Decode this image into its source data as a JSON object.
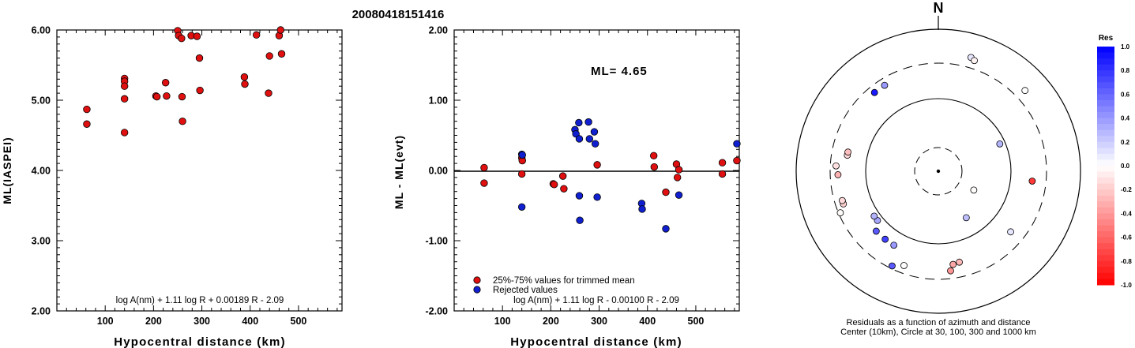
{
  "title": "20080418151416",
  "chart_data": [
    {
      "type": "scatter",
      "xlabel": "Hypocentral distance (km)",
      "ylabel": "ML(IASPEI)",
      "xlim": [
        0,
        590
      ],
      "ylim": [
        2.0,
        6.0
      ],
      "xticks": [
        "100",
        "200",
        "300",
        "400",
        "500"
      ],
      "yticks": [
        "2.00",
        "3.00",
        "4.00",
        "5.00",
        "6.00"
      ],
      "formula": "log A(nm) + 1.11 log R + 0.00189 R - 2.09",
      "series": [
        {
          "color": "#e01010",
          "points": [
            [
              62,
              4.87
            ],
            [
              62,
              4.66
            ],
            [
              140,
              5.31
            ],
            [
              140,
              5.27
            ],
            [
              140,
              5.2
            ],
            [
              140,
              5.02
            ],
            [
              140,
              4.54
            ],
            [
              205,
              5.06
            ],
            [
              207,
              5.05
            ],
            [
              225,
              5.25
            ],
            [
              227,
              5.06
            ],
            [
              250,
              5.99
            ],
            [
              252,
              5.92
            ],
            [
              258,
              5.88
            ],
            [
              259,
              5.05
            ],
            [
              260,
              4.7
            ],
            [
              278,
              5.92
            ],
            [
              290,
              5.91
            ],
            [
              295,
              5.6
            ],
            [
              296,
              5.14
            ],
            [
              388,
              5.33
            ],
            [
              389,
              5.23
            ],
            [
              413,
              5.93
            ],
            [
              438,
              5.1
            ],
            [
              440,
              5.63
            ],
            [
              460,
              5.92
            ],
            [
              463,
              6.03
            ],
            [
              465,
              5.66
            ]
          ]
        }
      ]
    },
    {
      "type": "scatter",
      "xlabel": "Hypocentral distance (km)",
      "ylabel": "ML - ML(evt)",
      "xlim": [
        0,
        590
      ],
      "ylim": [
        -2.0,
        2.0
      ],
      "xticks": [
        "100",
        "200",
        "300",
        "400",
        "500"
      ],
      "yticks": [
        "-2.00",
        "-1.00",
        "0.00",
        "1.00",
        "2.00"
      ],
      "annotation": "ML= 4.65",
      "formula": "log A(nm) + 1.11 log R - 0.00100 R - 2.09",
      "legend": [
        "25%-75% values for trimmed mean",
        "Rejected values"
      ],
      "legend_position": "bottom-left",
      "series": [
        {
          "name": "25%-75% values for trimmed mean",
          "color": "#e01010",
          "points": [
            [
              62,
              0.04
            ],
            [
              62,
              -0.18
            ],
            [
              140,
              0.18
            ],
            [
              141,
              0.14
            ],
            [
              140,
              -0.05
            ],
            [
              205,
              -0.19
            ],
            [
              207,
              -0.2
            ],
            [
              225,
              -0.08
            ],
            [
              227,
              -0.26
            ],
            [
              296,
              0.08
            ],
            [
              413,
              0.21
            ],
            [
              414,
              0.05
            ],
            [
              438,
              -0.31
            ],
            [
              460,
              0.09
            ],
            [
              462,
              -0.1
            ],
            [
              465,
              0.01
            ],
            [
              555,
              0.11
            ],
            [
              555,
              -0.05
            ],
            [
              585,
              0.14
            ]
          ]
        },
        {
          "name": "Rejected values",
          "color": "#1020d0",
          "points": [
            [
              140,
              0.23
            ],
            [
              141,
              0.22
            ],
            [
              140,
              -0.52
            ],
            [
              250,
              0.58
            ],
            [
              252,
              0.52
            ],
            [
              258,
              0.68
            ],
            [
              259,
              0.45
            ],
            [
              259,
              -0.36
            ],
            [
              260,
              -0.71
            ],
            [
              278,
              0.69
            ],
            [
              280,
              0.45
            ],
            [
              290,
              0.55
            ],
            [
              292,
              0.38
            ],
            [
              296,
              -0.38
            ],
            [
              388,
              -0.47
            ],
            [
              389,
              -0.55
            ],
            [
              438,
              -0.83
            ],
            [
              465,
              -0.35
            ],
            [
              585,
              0.38
            ]
          ]
        }
      ]
    },
    {
      "type": "scatter",
      "subtype": "polar",
      "north_label": "N",
      "caption_line1": "Residuals as a function of azimuth and distance",
      "caption_line2": "Center (10km), Circle at 30, 100, 300 and 1000 km",
      "rings_km": [
        10,
        30,
        100,
        300,
        1000
      ],
      "colorbar_title": "Res",
      "colorbar_ticks": [
        "1.0",
        "0.8",
        "0.6",
        "0.4",
        "0.2",
        "0.0",
        "-0.2",
        "-0.4",
        "-0.6",
        "-0.8",
        "-1.0"
      ],
      "points_az_dist_res": [
        [
          16,
          590,
          0.1
        ],
        [
          18,
          580,
          -0.05
        ],
        [
          47,
          590,
          0.0
        ],
        [
          66,
          335,
          0.3
        ],
        [
          96,
          470,
          -0.78
        ],
        [
          118,
          200,
          -0.01
        ],
        [
          130,
          470,
          0.1
        ],
        [
          149,
          270,
          0.25
        ],
        [
          167,
          465,
          -0.28
        ],
        [
          171,
          470,
          -0.35
        ],
        [
          173,
          500,
          -0.42
        ],
        [
          200,
          500,
          -0.01
        ],
        [
          206,
          525,
          0.65
        ],
        [
          211,
          430,
          0.4
        ],
        [
          218,
          430,
          0.75
        ],
        [
          226,
          430,
          0.65
        ],
        [
          231,
          390,
          0.35
        ],
        [
          235,
          390,
          0.3
        ],
        [
          247,
          530,
          -0.02
        ],
        [
          251,
          500,
          -0.18
        ],
        [
          253,
          500,
          -0.15
        ],
        [
          268,
          500,
          -0.3
        ],
        [
          273,
          510,
          -0.12
        ],
        [
          280,
          460,
          -0.15
        ],
        [
          282,
          460,
          -0.25
        ],
        [
          321,
          505,
          0.9
        ],
        [
          328,
          505,
          0.4
        ]
      ]
    }
  ]
}
